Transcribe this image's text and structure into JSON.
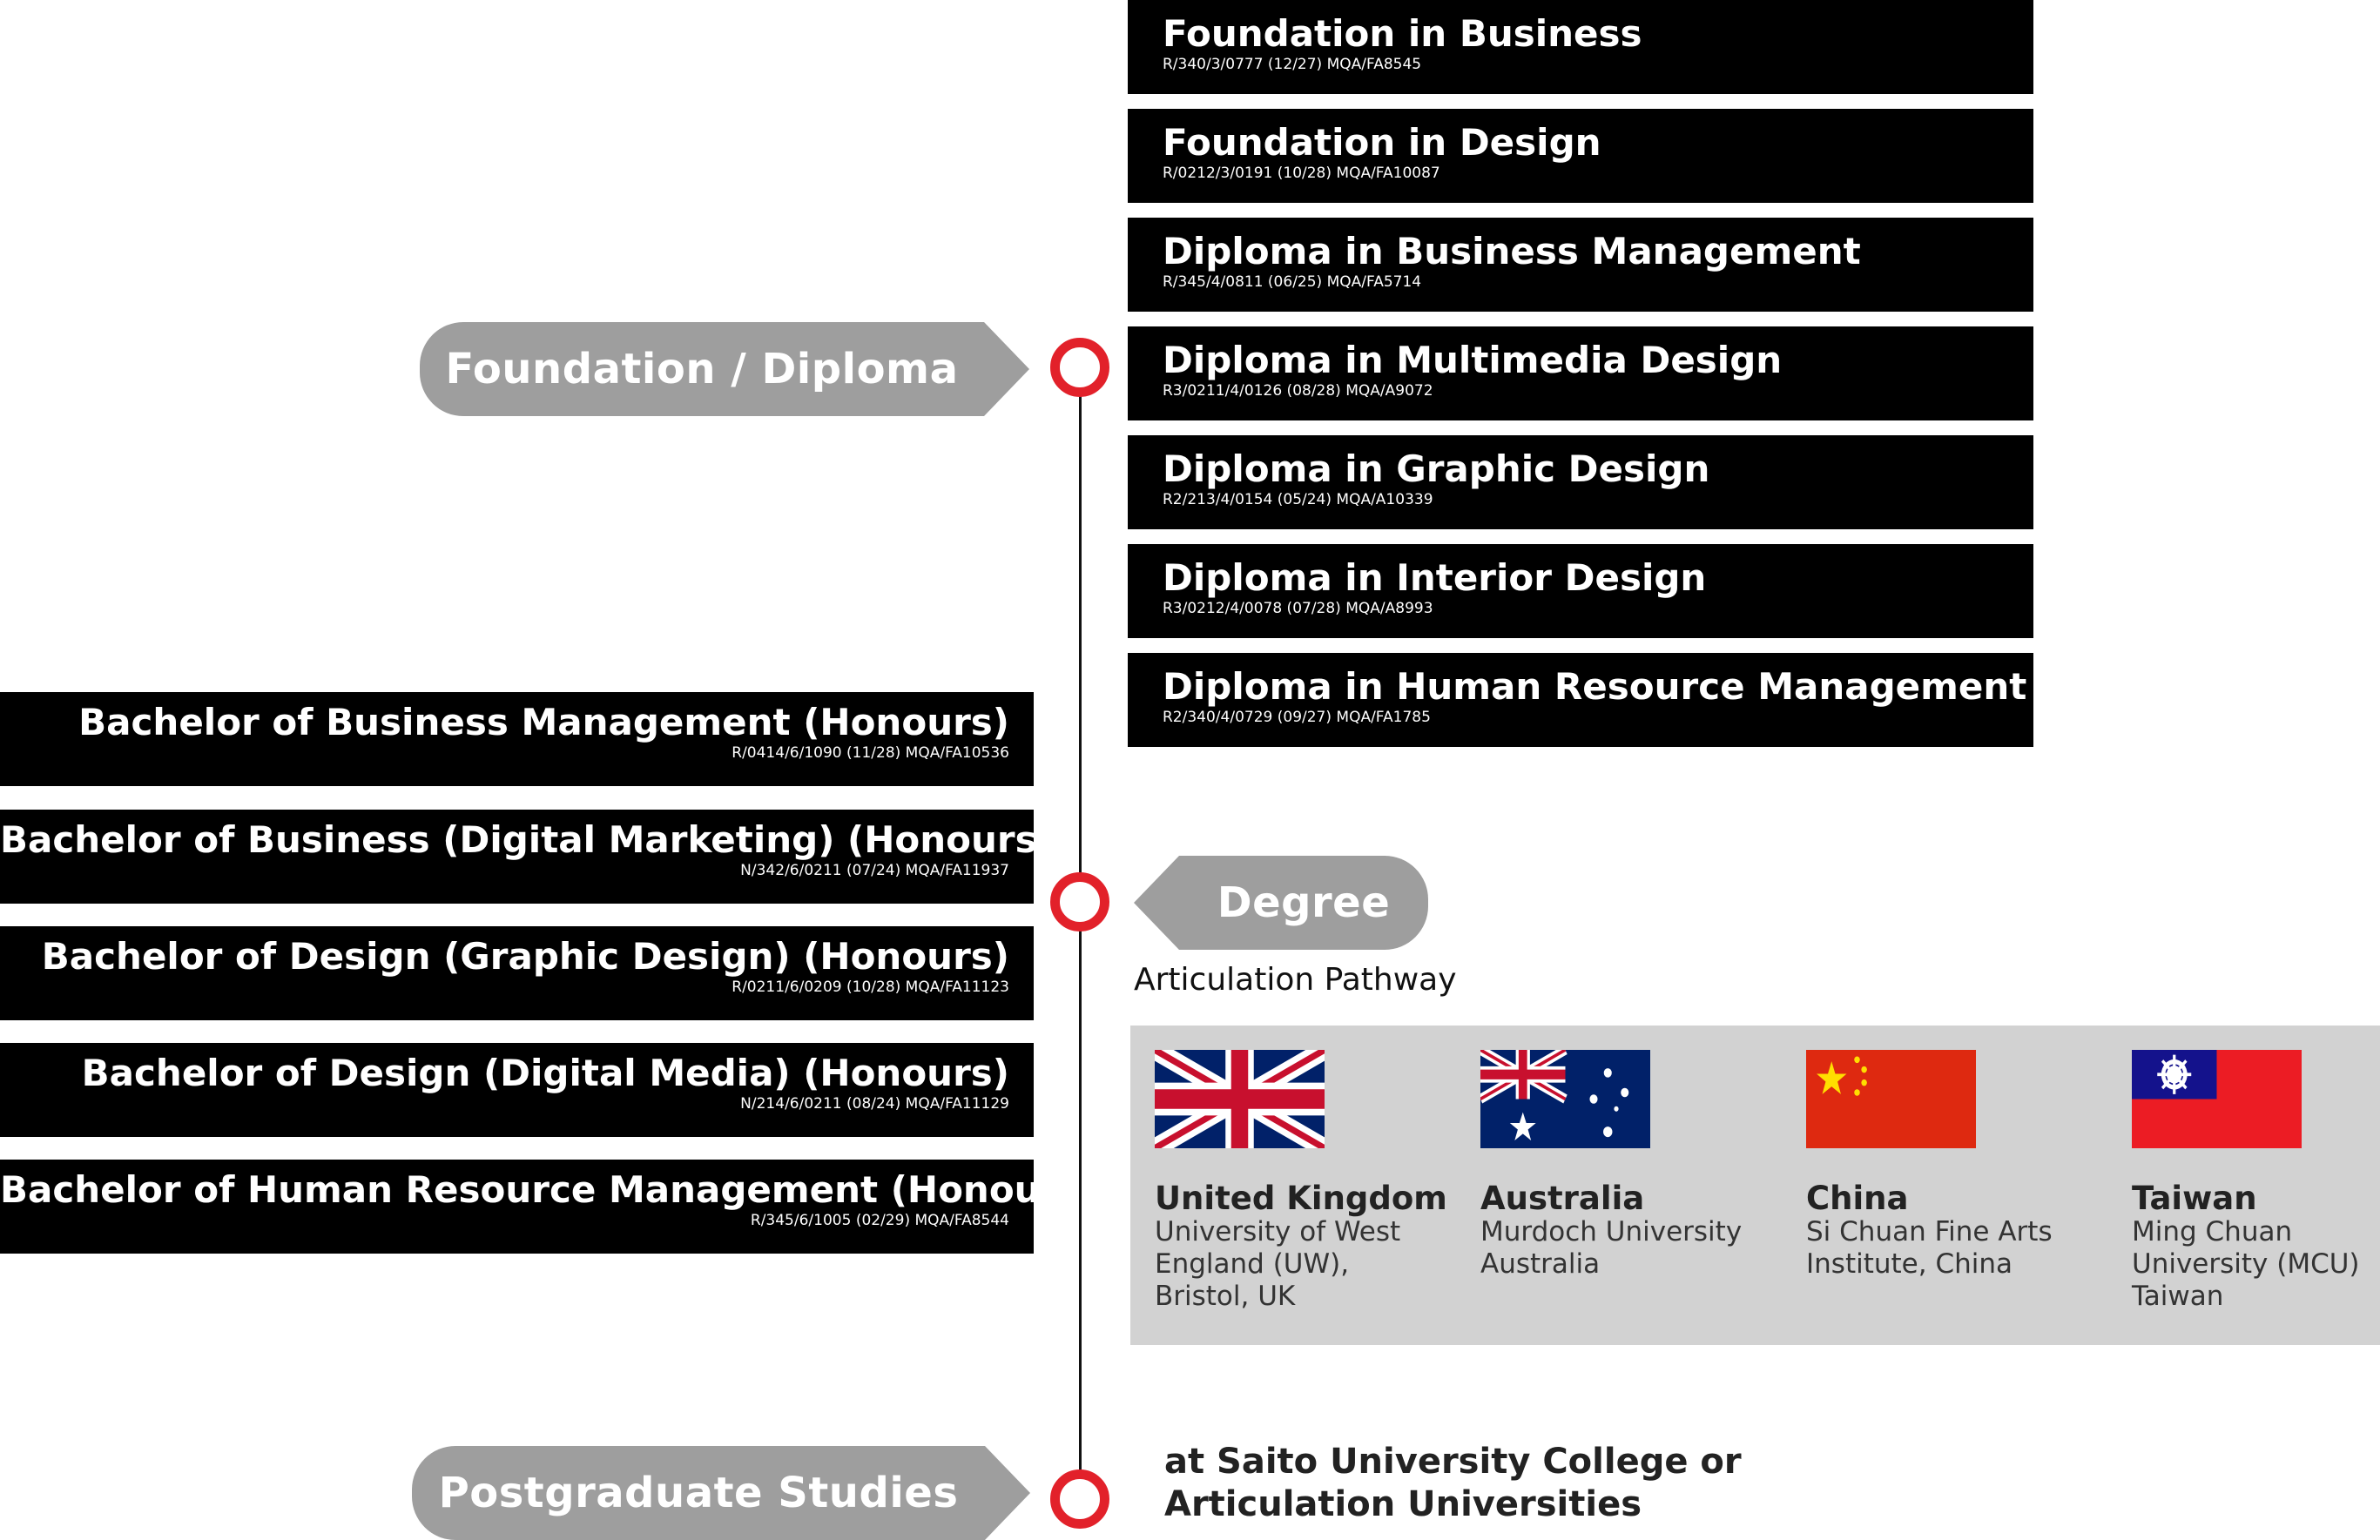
{
  "colors": {
    "accent": "#e2212a",
    "tag_bg": "#9e9e9e",
    "bar_bg": "#000000",
    "panel_bg": "#d2d2d2"
  },
  "stages": {
    "foundation": "Foundation / Diploma",
    "degree": "Degree",
    "postgrad": "Postgraduate Studies"
  },
  "foundation_programs": [
    {
      "title": "Foundation in Business",
      "code": "R/340/3/0777 (12/27) MQA/FA8545"
    },
    {
      "title": "Foundation in Design",
      "code": "R/0212/3/0191 (10/28) MQA/FA10087"
    },
    {
      "title": "Diploma in Business Management",
      "code": "R/345/4/0811 (06/25) MQA/FA5714"
    },
    {
      "title": "Diploma in Multimedia Design",
      "code": "R3/0211/4/0126 (08/28) MQA/A9072"
    },
    {
      "title": "Diploma in Graphic Design",
      "code": "R2/213/4/0154 (05/24) MQA/A10339"
    },
    {
      "title": "Diploma in Interior Design",
      "code": "R3/0212/4/0078 (07/28) MQA/A8993"
    },
    {
      "title": "Diploma in Human Resource Management",
      "code": "R2/340/4/0729 (09/27) MQA/FA1785"
    }
  ],
  "degree_programs": [
    {
      "title": "Bachelor of Business Management (Honours)",
      "code": "R/0414/6/1090 (11/28) MQA/FA10536"
    },
    {
      "title": "Bachelor of Business (Digital Marketing) (Honours)",
      "code": "N/342/6/0211 (07/24) MQA/FA11937"
    },
    {
      "title": "Bachelor of Design (Graphic Design) (Honours)",
      "code": "R/0211/6/0209 (10/28) MQA/FA11123"
    },
    {
      "title": "Bachelor of Design (Digital Media) (Honours)",
      "code": "N/214/6/0211 (08/24) MQA/FA11129"
    },
    {
      "title": "Bachelor of Human Resource Management (Honours)",
      "code": "R/345/6/1005 (02/29) MQA/FA8544"
    }
  ],
  "articulation": {
    "heading": "Articulation Pathway",
    "countries": [
      {
        "name": "United Kingdom",
        "university": "University of West England (UW), Bristol, UK",
        "flag": "uk-flag-icon"
      },
      {
        "name": "Australia",
        "university": "Murdoch University Australia",
        "flag": "australia-flag-icon"
      },
      {
        "name": "China",
        "university": "Si Chuan Fine Arts Institute, China",
        "flag": "china-flag-icon"
      },
      {
        "name": "Taiwan",
        "university": "Ming Chuan University (MCU) Taiwan",
        "flag": "taiwan-flag-icon"
      }
    ]
  },
  "postgrad_note": {
    "line1": "at Saito University College or",
    "line2": "Articulation Universities"
  }
}
